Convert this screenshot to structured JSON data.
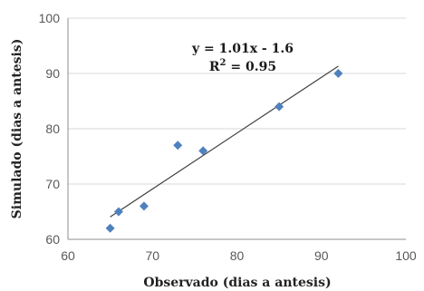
{
  "chart_data": {
    "type": "scatter",
    "xlabel": "Observado (dias a antesis)",
    "ylabel": "Simulado (dias a antesis)",
    "xlim": [
      60,
      100
    ],
    "ylim": [
      60,
      100
    ],
    "x_ticks": [
      60,
      70,
      80,
      90,
      100
    ],
    "y_ticks": [
      60,
      70,
      80,
      90,
      100
    ],
    "grid": "horizontal",
    "series": [
      {
        "marker": "diamond",
        "color": "#4F81BD",
        "points": [
          {
            "x": 65,
            "y": 62
          },
          {
            "x": 66,
            "y": 65
          },
          {
            "x": 69,
            "y": 66
          },
          {
            "x": 73,
            "y": 77
          },
          {
            "x": 76,
            "y": 76
          },
          {
            "x": 85,
            "y": 84
          },
          {
            "x": 92,
            "y": 90
          }
        ]
      }
    ],
    "trendline": {
      "slope": 1.01,
      "intercept": -1.6,
      "x_range": [
        65,
        92
      ],
      "equation": "y = 1.01x - 1.6",
      "r2_prefix": "R",
      "r2_sup": "2",
      "r2_suffix": " = 0.95"
    },
    "colors": {
      "marker": "#4F81BD",
      "trendline": "#404040",
      "grid": "#D9D9D9",
      "axis": "#8C8C8C"
    }
  }
}
